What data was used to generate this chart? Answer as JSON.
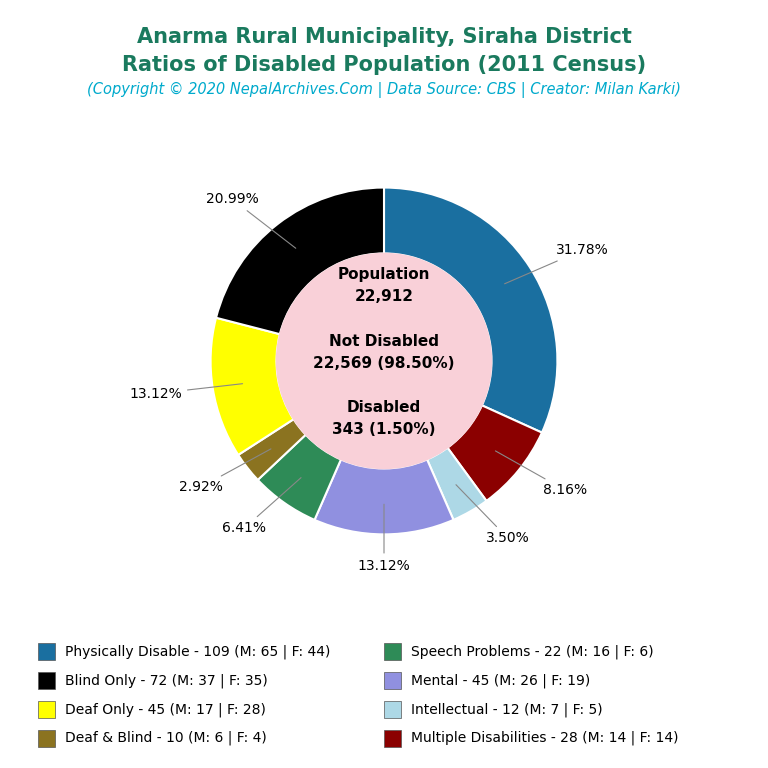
{
  "title_line1": "Anarma Rural Municipality, Siraha District",
  "title_line2": "Ratios of Disabled Population (2011 Census)",
  "subtitle": "(Copyright © 2020 NepalArchives.Com | Data Source: CBS | Creator: Milan Karki)",
  "title_color": "#1a7a5e",
  "subtitle_color": "#00aacc",
  "center_bg": "#f9d0d8",
  "slices": [
    {
      "label": "Physically Disable - 109 (M: 65 | F: 44)",
      "value": 109,
      "pct": 31.78,
      "color": "#1a6fa0"
    },
    {
      "label": "Multiple Disabilities - 28 (M: 14 | F: 14)",
      "value": 28,
      "pct": 8.16,
      "color": "#8b0000"
    },
    {
      "label": "Intellectual - 12 (M: 7 | F: 5)",
      "value": 12,
      "pct": 3.5,
      "color": "#add8e6"
    },
    {
      "label": "Mental - 45 (M: 26 | F: 19)",
      "value": 45,
      "pct": 13.12,
      "color": "#9090e0"
    },
    {
      "label": "Speech Problems - 22 (M: 16 | F: 6)",
      "value": 22,
      "pct": 6.41,
      "color": "#2e8b57"
    },
    {
      "label": "Deaf & Blind - 10 (M: 6 | F: 4)",
      "value": 10,
      "pct": 2.92,
      "color": "#8b7320"
    },
    {
      "label": "Deaf Only - 45 (M: 17 | F: 28)",
      "value": 45,
      "pct": 13.12,
      "color": "#ffff00"
    },
    {
      "label": "Blind Only - 72 (M: 37 | F: 35)",
      "value": 72,
      "pct": 20.99,
      "color": "#000000"
    }
  ],
  "legend_items": [
    {
      "label": "Physically Disable - 109 (M: 65 | F: 44)",
      "color": "#1a6fa0"
    },
    {
      "label": "Blind Only - 72 (M: 37 | F: 35)",
      "color": "#000000"
    },
    {
      "label": "Deaf Only - 45 (M: 17 | F: 28)",
      "color": "#ffff00"
    },
    {
      "label": "Deaf & Blind - 10 (M: 6 | F: 4)",
      "color": "#8b7320"
    },
    {
      "label": "Speech Problems - 22 (M: 16 | F: 6)",
      "color": "#2e8b57"
    },
    {
      "label": "Mental - 45 (M: 26 | F: 19)",
      "color": "#9090e0"
    },
    {
      "label": "Intellectual - 12 (M: 7 | F: 5)",
      "color": "#add8e6"
    },
    {
      "label": "Multiple Disabilities - 28 (M: 14 | F: 14)",
      "color": "#8b0000"
    }
  ],
  "bg_color": "#ffffff",
  "legend_fontsize": 10,
  "title_fontsize": 15,
  "subtitle_fontsize": 10.5
}
